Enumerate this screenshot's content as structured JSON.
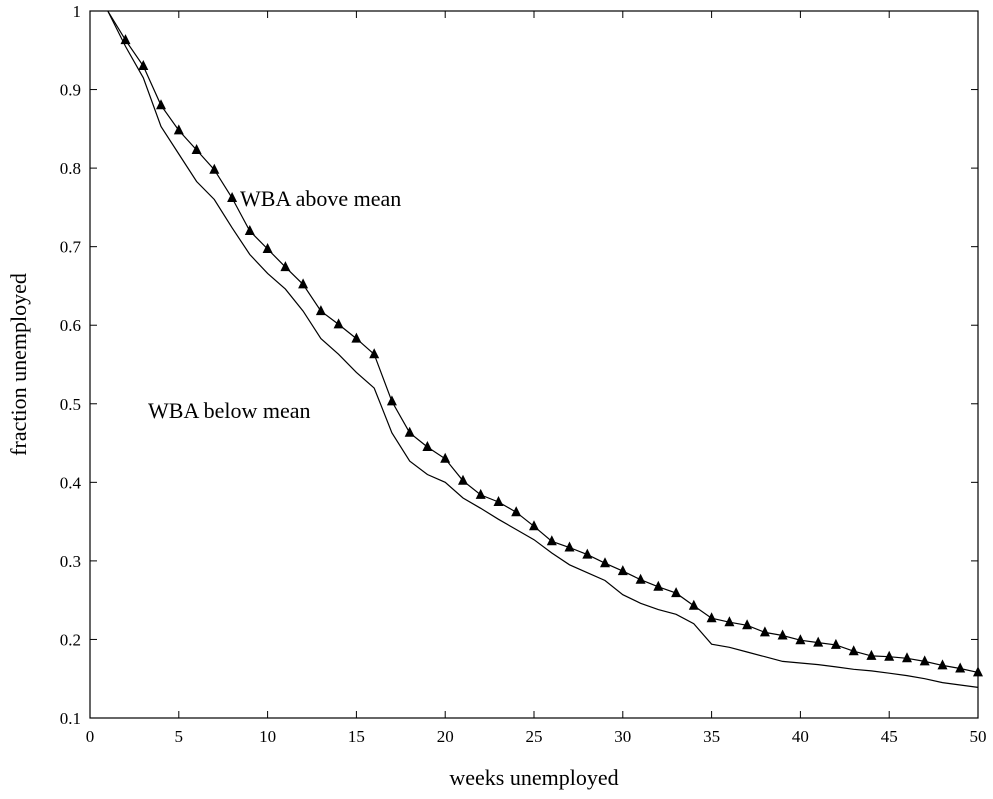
{
  "chart_data": {
    "type": "line",
    "title": "",
    "xlabel": "weeks unemployed",
    "ylabel": "fraction unemployed",
    "xlim": [
      0,
      50
    ],
    "ylim": [
      0.1,
      1
    ],
    "xticks": [
      0,
      5,
      10,
      15,
      20,
      25,
      30,
      35,
      40,
      45,
      50
    ],
    "yticks": [
      0.1,
      0.2,
      0.3,
      0.4,
      0.5,
      0.6,
      0.7,
      0.8,
      0.9,
      1
    ],
    "ytick_labels": [
      "0.1",
      "0.2",
      "0.3",
      "0.4",
      "0.5",
      "0.6",
      "0.7",
      "0.8",
      "0.9",
      "1"
    ],
    "grid": false,
    "legend": "none",
    "series": [
      {
        "name": "WBA above mean",
        "marker": "triangle",
        "x": [
          1,
          2,
          3,
          4,
          5,
          6,
          7,
          8,
          9,
          10,
          11,
          12,
          13,
          14,
          15,
          16,
          17,
          18,
          19,
          20,
          21,
          22,
          23,
          24,
          25,
          26,
          27,
          28,
          29,
          30,
          31,
          32,
          33,
          34,
          35,
          36,
          37,
          38,
          39,
          40,
          41,
          42,
          43,
          44,
          45,
          46,
          47,
          48,
          49,
          50
        ],
        "values": [
          1.0,
          0.963,
          0.93,
          0.88,
          0.848,
          0.823,
          0.798,
          0.762,
          0.72,
          0.697,
          0.674,
          0.652,
          0.618,
          0.601,
          0.583,
          0.563,
          0.503,
          0.463,
          0.445,
          0.43,
          0.402,
          0.384,
          0.375,
          0.362,
          0.344,
          0.325,
          0.317,
          0.308,
          0.297,
          0.287,
          0.276,
          0.267,
          0.259,
          0.243,
          0.227,
          0.222,
          0.218,
          0.209,
          0.205,
          0.199,
          0.196,
          0.193,
          0.185,
          0.179,
          0.178,
          0.176,
          0.172,
          0.167,
          0.163,
          0.158
        ]
      },
      {
        "name": "WBA below mean",
        "marker": "none",
        "x": [
          1,
          2,
          3,
          4,
          5,
          6,
          7,
          8,
          9,
          10,
          11,
          12,
          13,
          14,
          15,
          16,
          17,
          18,
          19,
          20,
          21,
          22,
          23,
          24,
          25,
          26,
          27,
          28,
          29,
          30,
          31,
          32,
          33,
          34,
          35,
          36,
          37,
          38,
          39,
          40,
          41,
          42,
          43,
          44,
          45,
          46,
          47,
          48,
          49,
          50
        ],
        "values": [
          1.0,
          0.955,
          0.915,
          0.853,
          0.818,
          0.783,
          0.76,
          0.724,
          0.69,
          0.666,
          0.646,
          0.618,
          0.583,
          0.563,
          0.54,
          0.52,
          0.463,
          0.427,
          0.41,
          0.4,
          0.38,
          0.367,
          0.353,
          0.34,
          0.327,
          0.31,
          0.295,
          0.285,
          0.275,
          0.257,
          0.246,
          0.238,
          0.232,
          0.22,
          0.194,
          0.19,
          0.184,
          0.178,
          0.172,
          0.17,
          0.168,
          0.165,
          0.162,
          0.16,
          0.157,
          0.154,
          0.15,
          0.145,
          0.142,
          0.139
        ]
      }
    ],
    "annotations": [
      {
        "text": "WBA above mean",
        "series": 0
      },
      {
        "text": "WBA below mean",
        "series": 1
      }
    ]
  }
}
